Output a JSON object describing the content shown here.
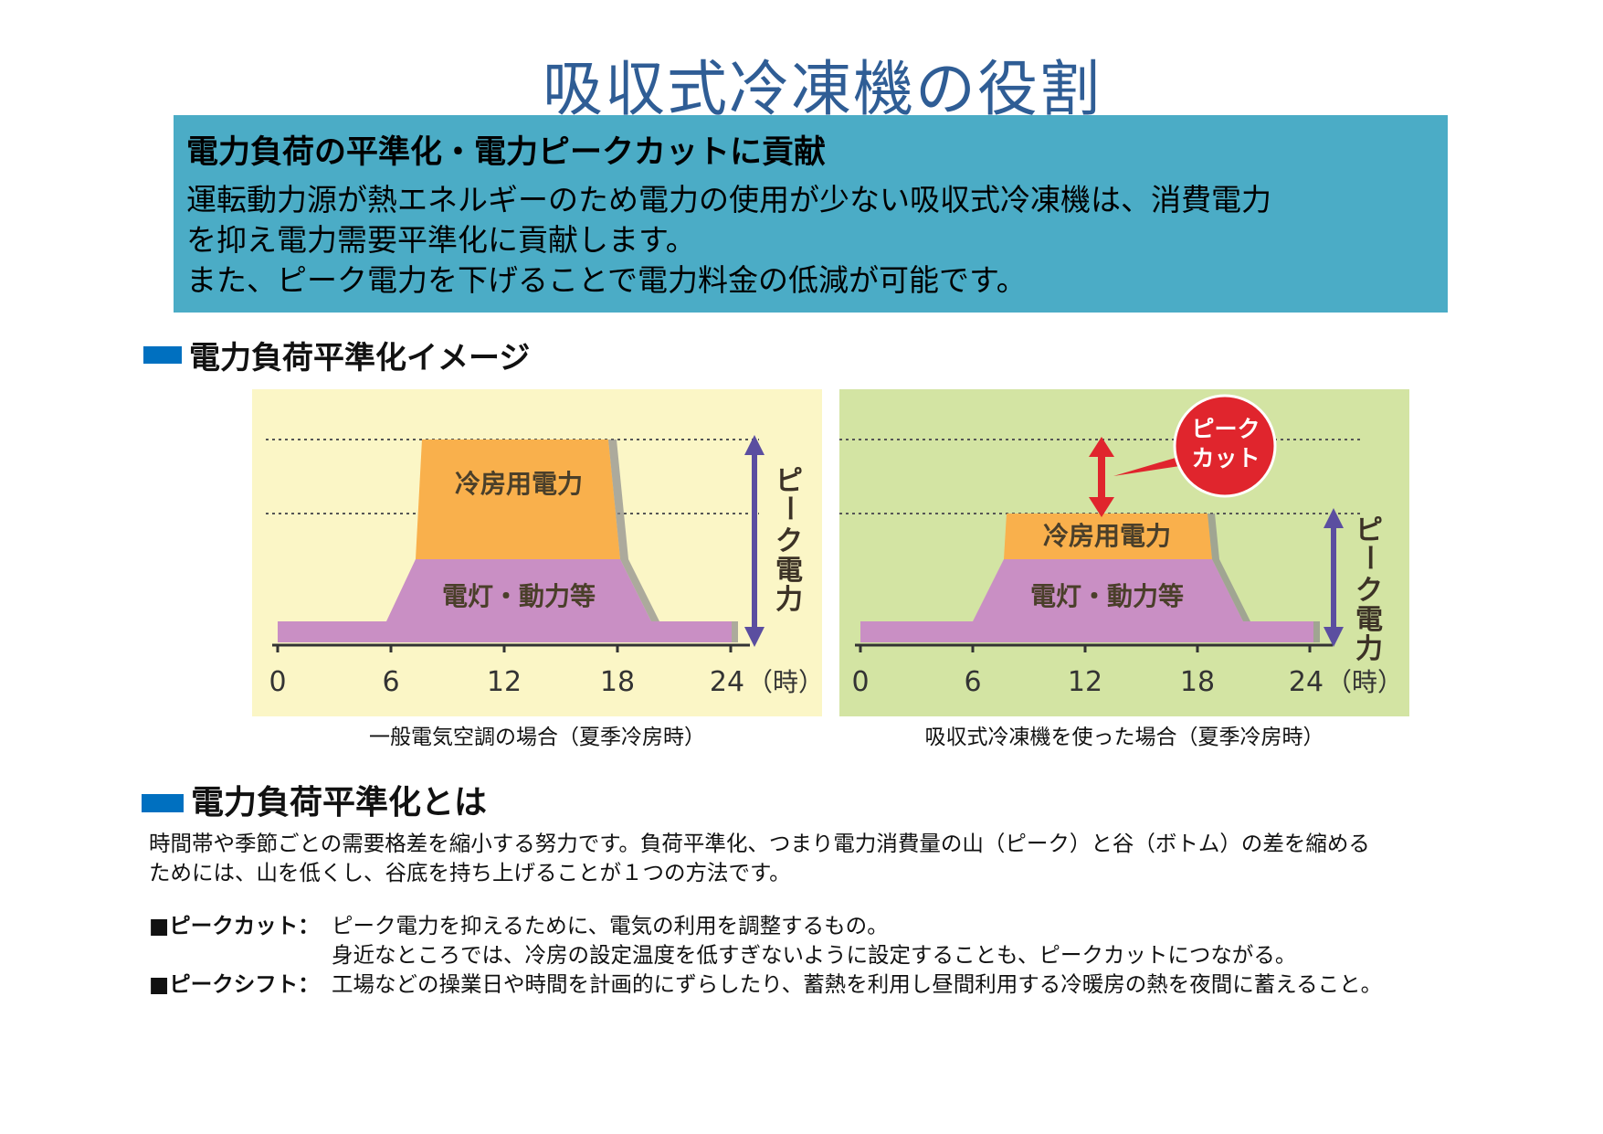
{
  "title": "吸収式冷凍機の役割",
  "banner": {
    "heading": "電力負荷の平準化・電力ピークカットに貢献",
    "lines": [
      "運転動力源が熱エネルギーのため電力の使用が少ない吸収式冷凍機は、消費電力",
      "を抑え電力需要平準化に貢献します。",
      "また、ピーク電力を下げることで電力料金の低減が可能です。"
    ]
  },
  "section1": {
    "heading": "電力負荷平準化イメージ"
  },
  "section2": {
    "heading": "電力負荷平準化とは"
  },
  "colors": {
    "title": "#2f5d95",
    "banner_bg": "#4bacc6",
    "bullet": "#0070c0",
    "panel1_bg": "#fbf6c6",
    "panel2_bg": "#d3e4a3",
    "cooling": "#f9b04c",
    "base": "#c98fc4",
    "arrow": "#5b4ea0",
    "peakcut": "#e0252d"
  },
  "chart_data": [
    {
      "type": "area",
      "caption": "一般電気空調の場合（夏季冷房時）",
      "x_ticks": [
        "0",
        "6",
        "12",
        "18",
        "24"
      ],
      "x_unit": "（時）",
      "xlim": [
        0,
        24
      ],
      "layers": [
        {
          "name": "電灯・動力等",
          "color": "#c98fc4"
        },
        {
          "name": "冷房用電力",
          "color": "#f9b04c"
        }
      ],
      "peak_label": "ピーク電力",
      "peak_label_chars": [
        "ピ",
        "ー",
        "ク",
        "電",
        "力"
      ]
    },
    {
      "type": "area",
      "caption": "吸収式冷凍機を使った場合（夏季冷房時）",
      "x_ticks": [
        "0",
        "6",
        "12",
        "18",
        "24"
      ],
      "x_unit": "（時）",
      "xlim": [
        0,
        24
      ],
      "layers": [
        {
          "name": "電灯・動力等",
          "color": "#c98fc4"
        },
        {
          "name": "冷房用電力",
          "color": "#f9b04c"
        }
      ],
      "peak_label": "ピーク電力",
      "peak_label_chars": [
        "ピ",
        "ー",
        "ク",
        "電",
        "力"
      ],
      "callout": {
        "line1": "ピーク",
        "line2": "カット"
      }
    }
  ],
  "intro": [
    "時間帯や季節ごとの需要格差を縮小する努力です。負荷平準化、つまり電力消費量の山（ピーク）と谷（ボトム）の差を縮める",
    "ためには、山を低くし、谷底を持ち上げることが１つの方法です。"
  ],
  "definitions": [
    {
      "term": "■ピークカット：",
      "lines": [
        "ピーク電力を抑えるために、電気の利用を調整するもの。",
        "身近なところでは、冷房の設定温度を低すぎないように設定することも、ピークカットにつながる。"
      ]
    },
    {
      "term": "■ピークシフト：",
      "lines": [
        "工場などの操業日や時間を計画的にずらしたり、蓄熱を利用し昼間利用する冷暖房の熱を夜間に蓄えること。"
      ]
    }
  ]
}
